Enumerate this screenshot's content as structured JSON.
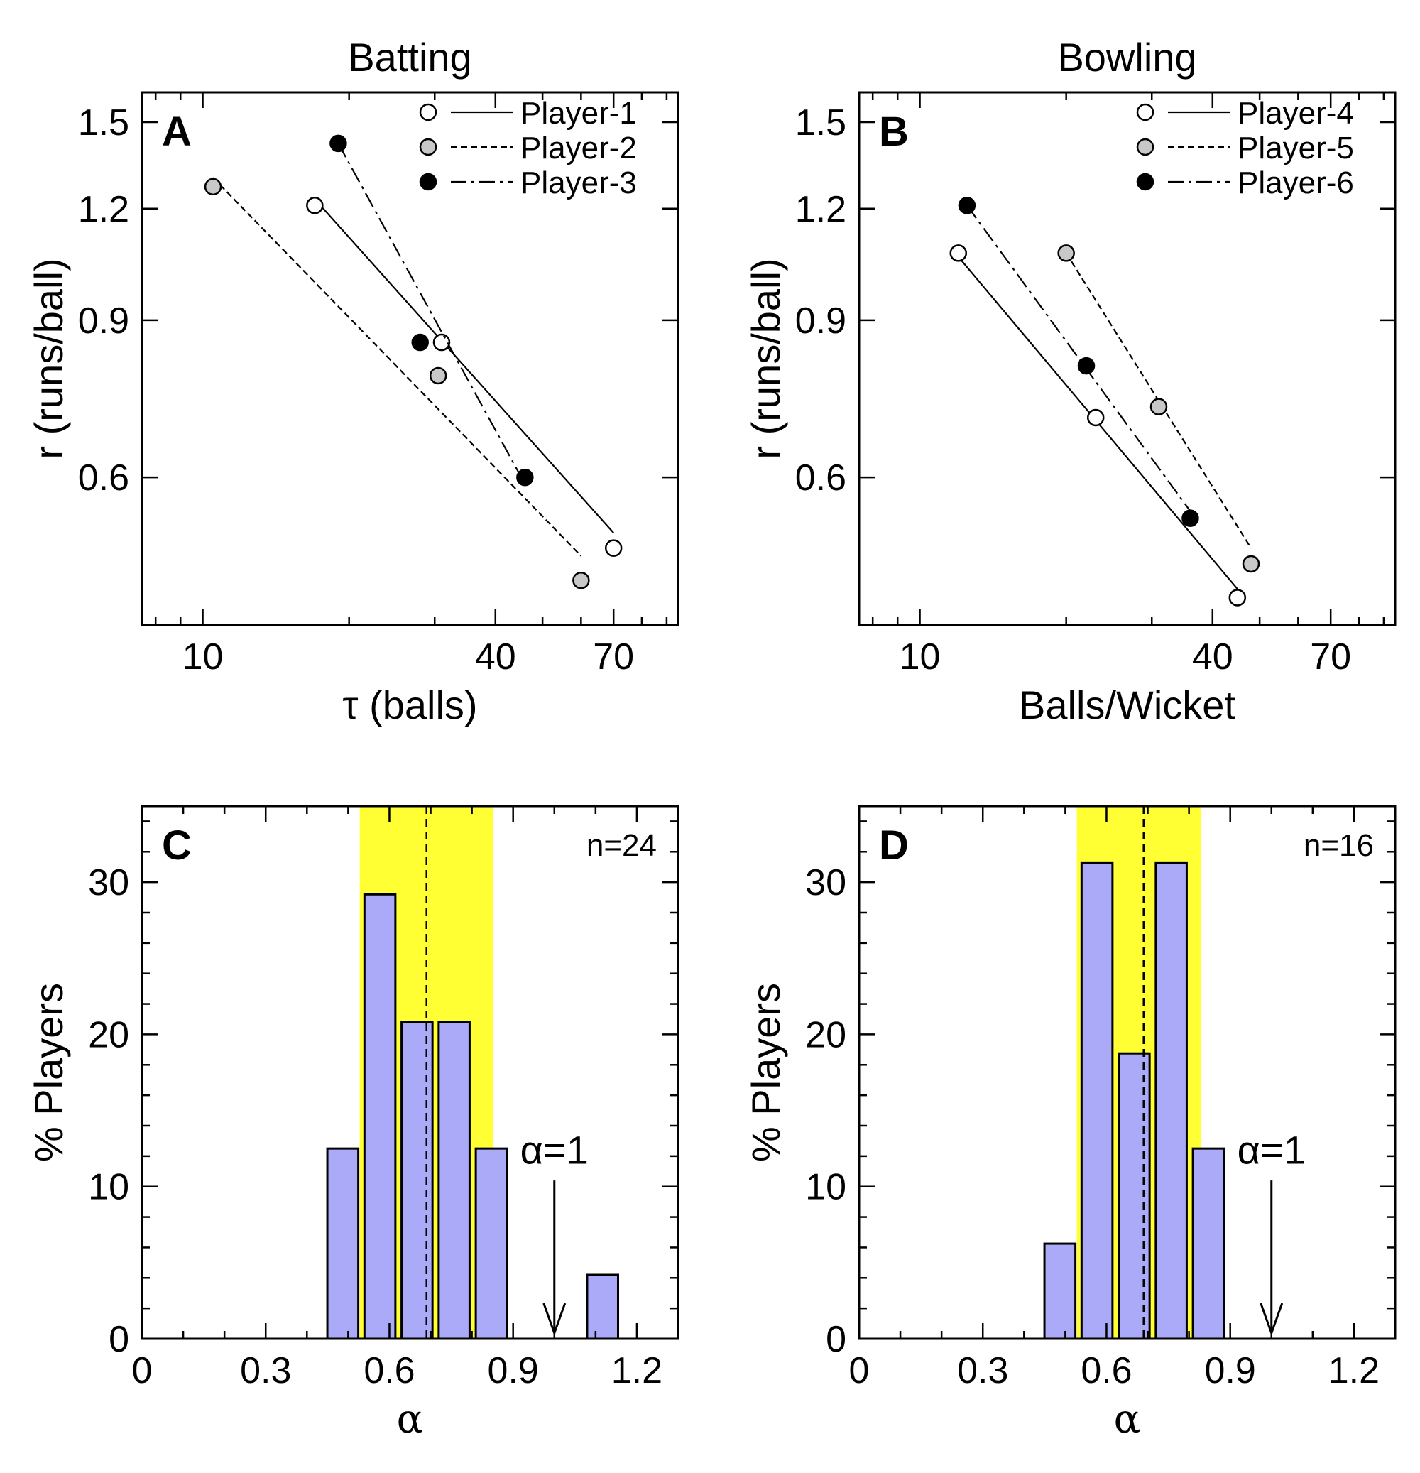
{
  "chart_data": [
    {
      "panel": "A",
      "type": "scatter",
      "title": "Batting",
      "xlabel": "τ (balls)",
      "ylabel": "r (runs/ball)",
      "xscale": "log",
      "yscale": "log",
      "xlim": [
        7.5,
        95
      ],
      "ylim": [
        0.41,
        1.62
      ],
      "xticks": [
        10,
        40,
        70
      ],
      "xtick_labels": [
        "10",
        "40",
        "70"
      ],
      "yticks": [
        1.5,
        1.2,
        0.9,
        0.6
      ],
      "ytick_labels": [
        "1.5",
        "1.2",
        "0.9",
        "0.6"
      ],
      "legend_position": "top-right",
      "series": [
        {
          "name": "Player-1",
          "marker": "open",
          "line": "solid",
          "points": [
            [
              17,
              1.21
            ],
            [
              31,
              0.85
            ],
            [
              70,
              0.5
            ]
          ],
          "fit": [
            [
              17,
              1.23
            ],
            [
              70,
              0.52
            ]
          ]
        },
        {
          "name": "Player-2",
          "marker": "gray",
          "line": "dashed",
          "points": [
            [
              10.5,
              1.27
            ],
            [
              30.5,
              0.78
            ],
            [
              60,
              0.46
            ]
          ],
          "fit": [
            [
              10.5,
              1.3
            ],
            [
              60,
              0.49
            ]
          ]
        },
        {
          "name": "Player-3",
          "marker": "filled",
          "line": "dashdot",
          "points": [
            [
              19,
              1.42
            ],
            [
              28,
              0.85
            ],
            [
              46,
              0.6
            ]
          ],
          "fit": [
            [
              19,
              1.42
            ],
            [
              46,
              0.59
            ]
          ]
        }
      ]
    },
    {
      "panel": "B",
      "type": "scatter",
      "title": "Bowling",
      "xlabel": "Balls/Wicket",
      "ylabel": "r (runs/ball)",
      "xscale": "log",
      "yscale": "log",
      "xlim": [
        7.5,
        95
      ],
      "ylim": [
        0.41,
        1.62
      ],
      "xticks": [
        10,
        40,
        70
      ],
      "xtick_labels": [
        "10",
        "40",
        "70"
      ],
      "yticks": [
        1.5,
        1.2,
        0.9,
        0.6
      ],
      "ytick_labels": [
        "1.5",
        "1.2",
        "0.9",
        "0.6"
      ],
      "legend_position": "top-right",
      "series": [
        {
          "name": "Player-4",
          "marker": "open",
          "line": "solid",
          "points": [
            [
              12,
              1.07
            ],
            [
              23,
              0.7
            ],
            [
              45,
              0.44
            ]
          ],
          "fit": [
            [
              12,
              1.06
            ],
            [
              45,
              0.45
            ]
          ]
        },
        {
          "name": "Player-5",
          "marker": "gray",
          "line": "dashed",
          "points": [
            [
              20,
              1.07
            ],
            [
              31,
              0.72
            ],
            [
              48,
              0.48
            ]
          ],
          "fit": [
            [
              20,
              1.07
            ],
            [
              48,
              0.5
            ]
          ]
        },
        {
          "name": "Player-6",
          "marker": "filled",
          "line": "dashdot",
          "points": [
            [
              12.5,
              1.21
            ],
            [
              22,
              0.8
            ],
            [
              36,
              0.54
            ]
          ],
          "fit": [
            [
              12.5,
              1.21
            ],
            [
              36,
              0.55
            ]
          ]
        }
      ]
    },
    {
      "panel": "C",
      "type": "bar",
      "title": "",
      "xlabel": "α",
      "ylabel": "% Players",
      "xlim": [
        0,
        1.3
      ],
      "ylim": [
        0,
        35
      ],
      "xticks": [
        0,
        0.3,
        0.6,
        0.9,
        1.2
      ],
      "xtick_labels": [
        "0",
        "0.3",
        "0.6",
        "0.9",
        "1.2"
      ],
      "yticks": [
        0,
        10,
        20,
        30
      ],
      "ytick_labels": [
        "0",
        "10",
        "20",
        "30"
      ],
      "bin_width": 0.075,
      "bars": [
        {
          "center": 0.487,
          "value": 12.5
        },
        {
          "center": 0.577,
          "value": 29.2
        },
        {
          "center": 0.667,
          "value": 20.8
        },
        {
          "center": 0.757,
          "value": 20.8
        },
        {
          "center": 0.847,
          "value": 12.5
        },
        {
          "center": 1.117,
          "value": 4.2
        }
      ],
      "band": [
        0.528,
        0.852
      ],
      "mean_line": 0.69,
      "n_label": "n=24",
      "annotation": {
        "text": "α=1",
        "x": 1.0
      }
    },
    {
      "panel": "D",
      "type": "bar",
      "title": "",
      "xlabel": "α",
      "ylabel": "% Players",
      "xlim": [
        0,
        1.3
      ],
      "ylim": [
        0,
        35
      ],
      "xticks": [
        0,
        0.3,
        0.6,
        0.9,
        1.2
      ],
      "xtick_labels": [
        "0",
        "0.3",
        "0.6",
        "0.9",
        "1.2"
      ],
      "yticks": [
        0,
        10,
        20,
        30
      ],
      "ytick_labels": [
        "0",
        "10",
        "20",
        "30"
      ],
      "bin_width": 0.075,
      "bars": [
        {
          "center": 0.487,
          "value": 6.25
        },
        {
          "center": 0.577,
          "value": 31.25
        },
        {
          "center": 0.667,
          "value": 18.75
        },
        {
          "center": 0.757,
          "value": 31.25
        },
        {
          "center": 0.847,
          "value": 12.5
        }
      ],
      "band": [
        0.528,
        0.83
      ],
      "mean_line": 0.69,
      "n_label": "n=16",
      "annotation": {
        "text": "α=1",
        "x": 1.0
      }
    }
  ],
  "colors": {
    "bar_fill": "#aaaaf8",
    "band_fill": "#ffff33",
    "gray_marker": "#c8c8c8"
  }
}
